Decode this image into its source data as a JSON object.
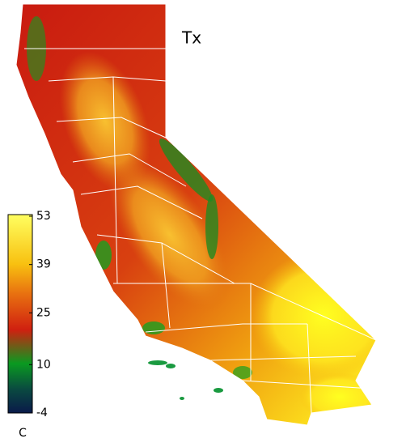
{
  "title": "Tx",
  "colorbar": {
    "label": "C",
    "lim": [
      -4,
      53
    ],
    "ticks": [
      53,
      39,
      25,
      10,
      -4
    ]
  }
}
